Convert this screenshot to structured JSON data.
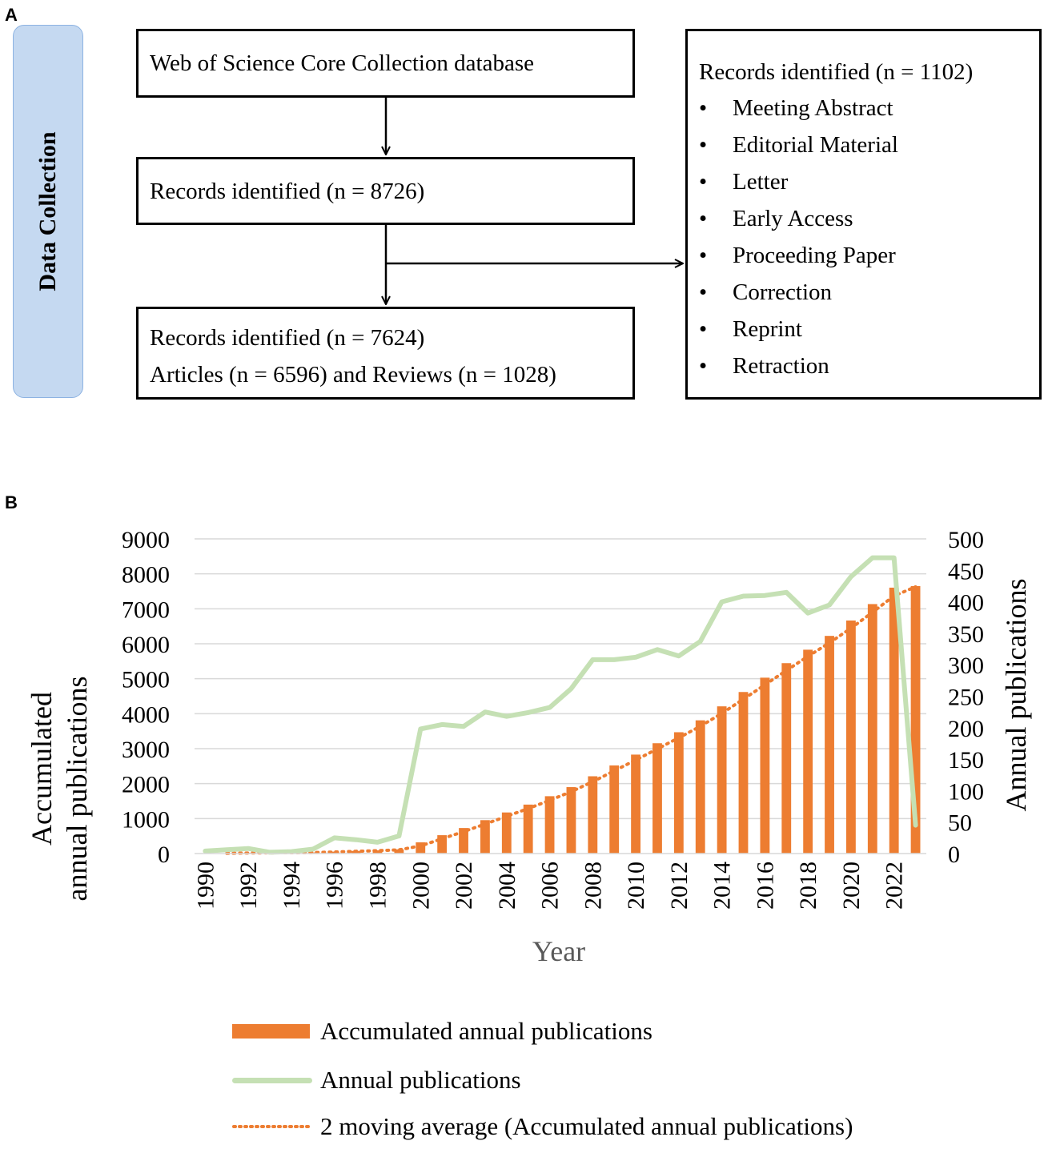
{
  "panel_a": {
    "label": "A",
    "side_label": "Data Collection",
    "box_source": "Web of Science Core Collection database",
    "box_identified": "Records identified (n = 8726)",
    "box_final_line1": "Records identified (n = 7624)",
    "box_final_line2": "Articles (n = 6596) and Reviews (n = 1028)",
    "excluded_title": "Records identified (n = 1102)",
    "excluded_items": [
      "Meeting Abstract",
      "Editorial Material",
      "Letter",
      "Early Access",
      "Proceeding Paper",
      "Correction",
      "Reprint",
      "Retraction"
    ],
    "bullet": "•"
  },
  "panel_b": {
    "label": "B"
  },
  "chart_data": {
    "type": "bar",
    "title": "",
    "xlabel": "Year",
    "ylabel": "Accumulated annual publications",
    "ylabel_lines": [
      "Accumulated",
      "annual publications"
    ],
    "y2label": "Annual publications",
    "ylim": [
      0,
      9000
    ],
    "y2lim": [
      0,
      500
    ],
    "yticks": [
      "0",
      "1000",
      "2000",
      "3000",
      "4000",
      "5000",
      "6000",
      "7000",
      "8000",
      "9000"
    ],
    "y2ticks": [
      "0",
      "50",
      "100",
      "150",
      "200",
      "250",
      "300",
      "350",
      "400",
      "450",
      "500"
    ],
    "x": [
      1990,
      1991,
      1992,
      1993,
      1994,
      1995,
      1996,
      1997,
      1998,
      1999,
      2000,
      2001,
      2002,
      2003,
      2004,
      2005,
      2006,
      2007,
      2008,
      2009,
      2010,
      2011,
      2012,
      2013,
      2014,
      2015,
      2016,
      2017,
      2018,
      2019,
      2020,
      2021,
      2022,
      2023
    ],
    "xtick_labels": [
      "1990",
      "1992",
      "1994",
      "1996",
      "1998",
      "2000",
      "2002",
      "2004",
      "2006",
      "2008",
      "2010",
      "2012",
      "2014",
      "2016",
      "2018",
      "2020",
      "2022"
    ],
    "series": [
      {
        "name": "Accumulated annual publications",
        "type": "bar",
        "axis": "left",
        "color": "#ed7d31",
        "values": [
          4,
          10,
          20,
          22,
          25,
          32,
          55,
          75,
          92,
          120,
          320,
          525,
          730,
          955,
          1175,
          1400,
          1640,
          1900,
          2210,
          2520,
          2830,
          3155,
          3470,
          3810,
          4210,
          4620,
          5030,
          5445,
          5830,
          6225,
          6665,
          7135,
          7605,
          7650
        ]
      },
      {
        "name": "Annual publications",
        "type": "line",
        "axis": "right",
        "color": "#c5e0b4",
        "values": [
          4,
          6,
          8,
          2,
          3,
          7,
          25,
          22,
          18,
          28,
          198,
          205,
          202,
          225,
          218,
          224,
          232,
          262,
          308,
          308,
          312,
          324,
          314,
          337,
          400,
          409,
          410,
          415,
          382,
          395,
          440,
          470,
          470,
          45
        ]
      },
      {
        "name": "2 moving average (Accumulated annual publications)",
        "type": "moving_average",
        "axis": "left",
        "color": "#ed7d31",
        "period": 2
      }
    ]
  }
}
